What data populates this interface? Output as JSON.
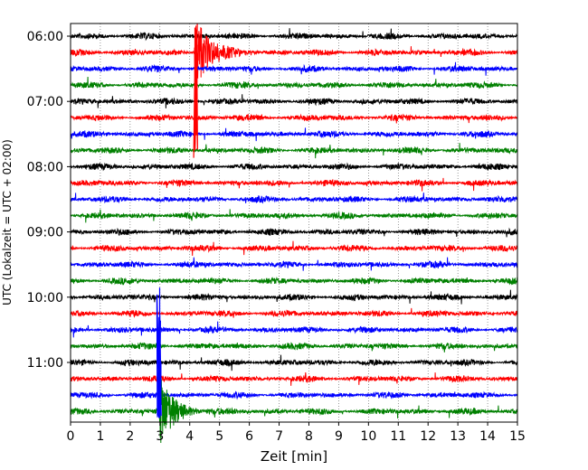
{
  "chart_data": {
    "type": "line",
    "title": "",
    "xlabel": "Zeit  [min]",
    "ylabel": "UTC (Lokalzeit = UTC + 02:00)",
    "xlim": [
      0,
      15
    ],
    "xticks": [
      "0",
      "1",
      "2",
      "3",
      "4",
      "5",
      "6",
      "7",
      "8",
      "9",
      "10",
      "11",
      "12",
      "13",
      "14",
      "15"
    ],
    "yticks": [
      "06:00",
      "07:00",
      "08:00",
      "09:00",
      "10:00",
      "11:00"
    ],
    "ytick_trace_index": [
      0,
      4,
      8,
      12,
      16,
      20
    ],
    "trace_interval_minutes": 15,
    "trace_count": 24,
    "color_cycle": [
      "#000000",
      "#ff0000",
      "#0000ff",
      "#008000"
    ],
    "grid": "vertical dotted at each minute",
    "events": [
      {
        "trace": 1,
        "time_min": 4.2,
        "color": "#ff0000"
      },
      {
        "trace": 23,
        "time_min": 2.97,
        "color": "#0000ff"
      }
    ]
  }
}
